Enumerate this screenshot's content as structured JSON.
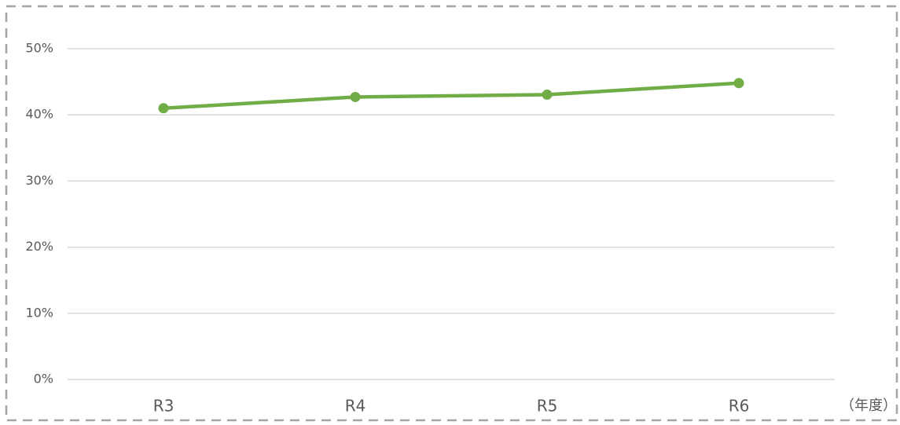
{
  "chart_data": {
    "type": "line",
    "categories": [
      "R3",
      "R4",
      "R5",
      "R6"
    ],
    "values": [
      41.0,
      42.7,
      43.05,
      44.8
    ],
    "color": "#70ad47",
    "x_label": "（年度）",
    "ylim": [
      0,
      50
    ],
    "yticks": [
      {
        "value": 0,
        "label": "0%"
      },
      {
        "value": 10,
        "label": "10%"
      },
      {
        "value": 20,
        "label": "20%"
      },
      {
        "value": 30,
        "label": "30%"
      },
      {
        "value": 40,
        "label": "40%"
      },
      {
        "value": 50,
        "label": "50%"
      }
    ],
    "grid": true
  }
}
